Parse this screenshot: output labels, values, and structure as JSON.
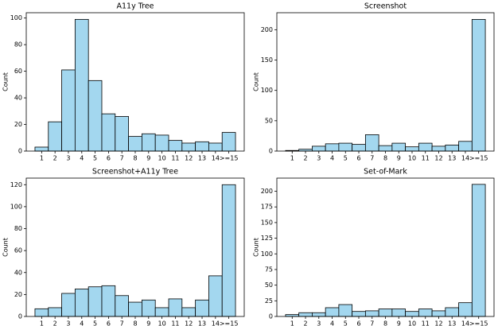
{
  "chart_data": [
    {
      "type": "bar",
      "title": "A11y Tree",
      "ylabel": "Count",
      "color": "#a3d7ef",
      "categories": [
        "1",
        "2",
        "3",
        "4",
        "5",
        "6",
        "7",
        "8",
        "9",
        "10",
        "11",
        "12",
        "13",
        "14",
        ">=15"
      ],
      "values": [
        3,
        22,
        61,
        99,
        53,
        28,
        26,
        11,
        13,
        12,
        8,
        6,
        7,
        6,
        14
      ],
      "ylim": [
        0,
        104
      ],
      "yticks": [
        0,
        20,
        40,
        60,
        80,
        100
      ]
    },
    {
      "type": "bar",
      "title": "Screenshot",
      "ylabel": "Count",
      "color": "#a3d7ef",
      "categories": [
        "1",
        "2",
        "3",
        "4",
        "5",
        "6",
        "7",
        "8",
        "9",
        "10",
        "11",
        "12",
        "13",
        "14",
        ">=15"
      ],
      "values": [
        1,
        3,
        8,
        12,
        13,
        11,
        27,
        9,
        13,
        7,
        13,
        8,
        10,
        16,
        217
      ],
      "ylim": [
        0,
        228
      ],
      "yticks": [
        0,
        50,
        100,
        150,
        200
      ]
    },
    {
      "type": "bar",
      "title": "Screenshot+A11y Tree",
      "ylabel": "Count",
      "color": "#a3d7ef",
      "categories": [
        "1",
        "2",
        "3",
        "4",
        "5",
        "6",
        "7",
        "8",
        "9",
        "10",
        "11",
        "12",
        "13",
        "14",
        ">=15"
      ],
      "values": [
        7,
        8,
        21,
        25,
        27,
        28,
        19,
        13,
        15,
        8,
        16,
        8,
        15,
        37,
        120
      ],
      "ylim": [
        0,
        126
      ],
      "yticks": [
        0,
        20,
        40,
        60,
        80,
        100,
        120
      ]
    },
    {
      "type": "bar",
      "title": "Set-of-Mark",
      "ylabel": "Count",
      "color": "#a3d7ef",
      "categories": [
        "1",
        "2",
        "3",
        "4",
        "5",
        "6",
        "7",
        "8",
        "9",
        "10",
        "11",
        "12",
        "13",
        "14",
        ">=15"
      ],
      "values": [
        3,
        6,
        6,
        14,
        19,
        8,
        9,
        12,
        12,
        8,
        12,
        9,
        14,
        22,
        211
      ],
      "ylim": [
        0,
        221
      ],
      "yticks": [
        0,
        25,
        50,
        75,
        100,
        125,
        150,
        175,
        200
      ]
    }
  ]
}
